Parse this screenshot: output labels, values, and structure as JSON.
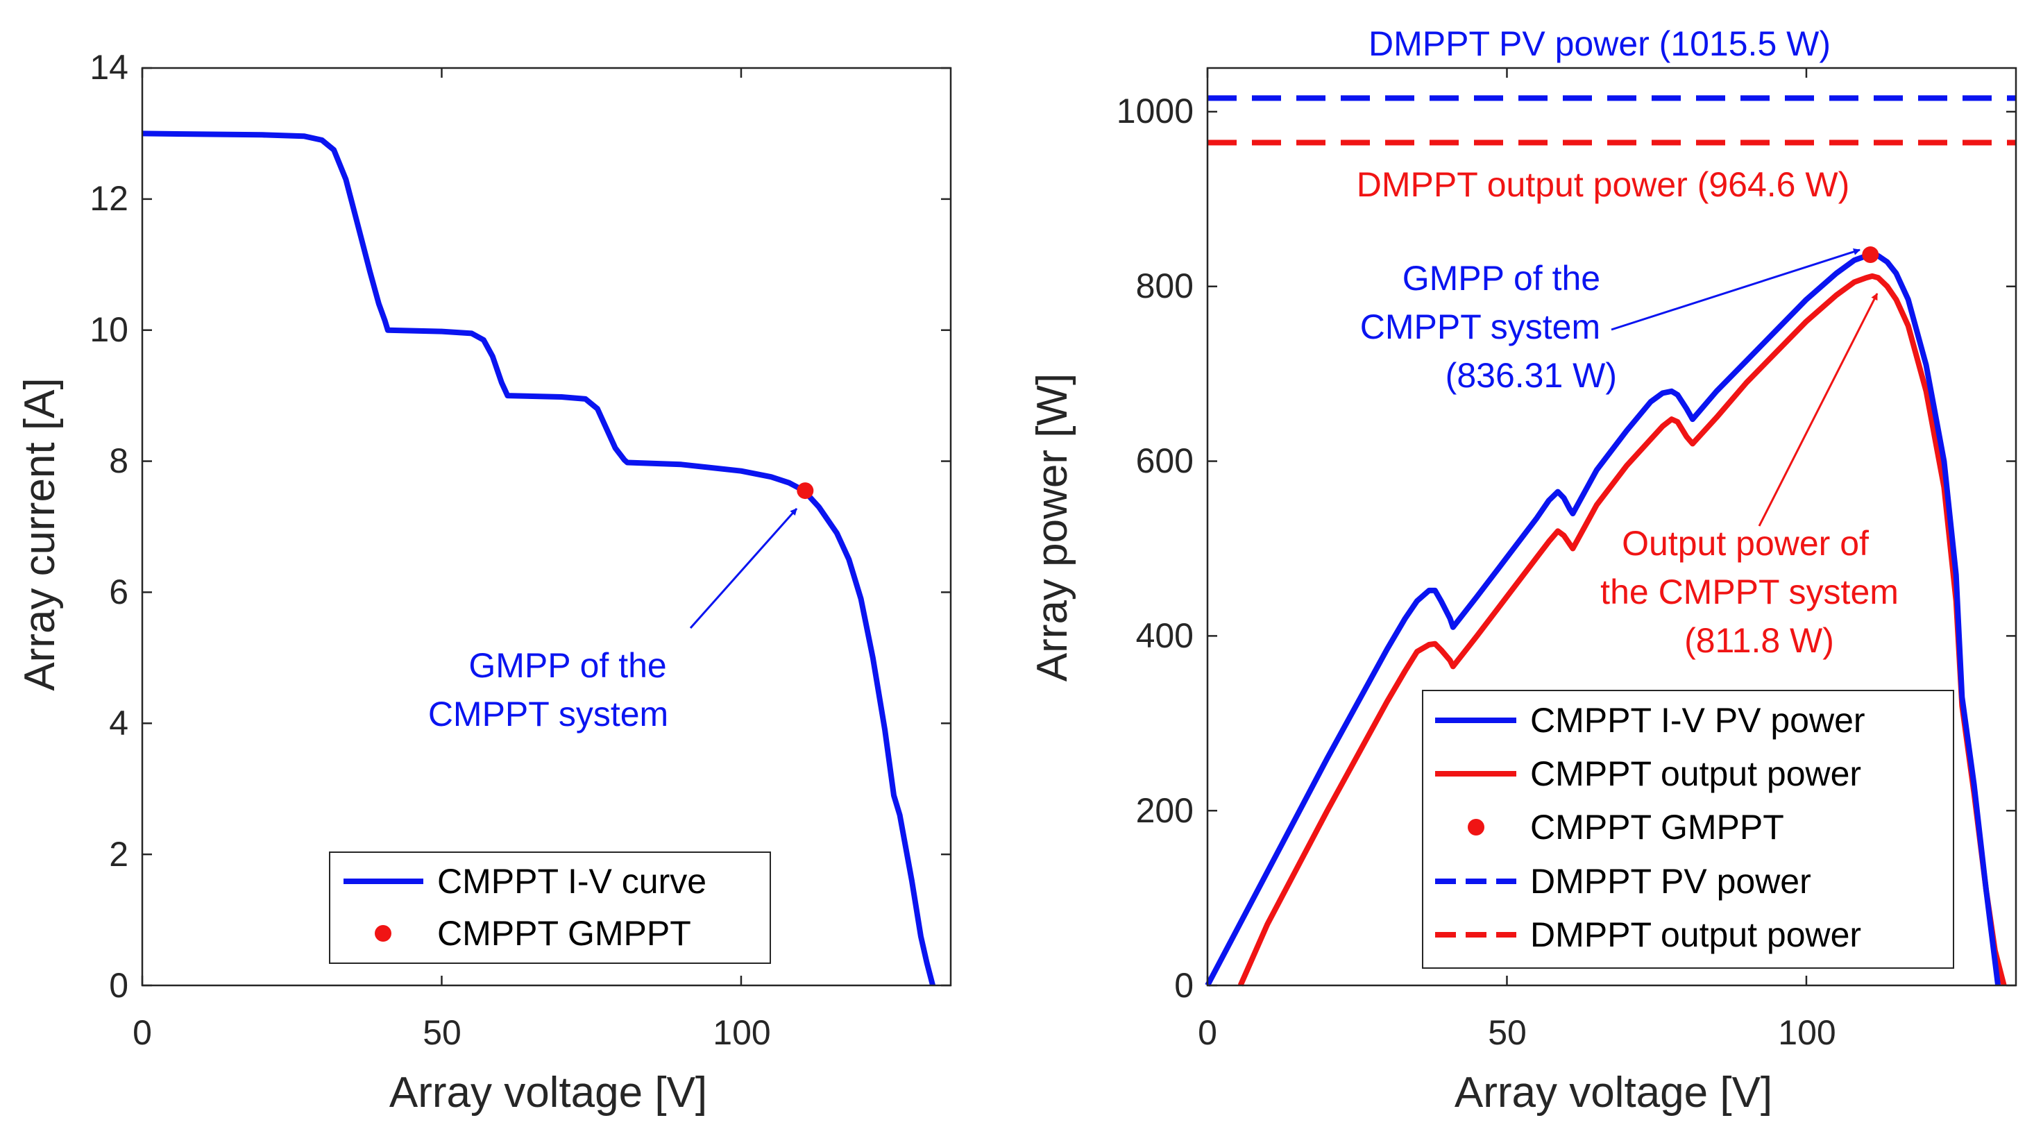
{
  "colors": {
    "blue": "#0a14f0",
    "red": "#f01414",
    "axis": "#262626"
  },
  "chart_data": [
    {
      "type": "line",
      "xlabel": "Array voltage [V]",
      "ylabel": "Array current [A]",
      "xlim": [
        0,
        135
      ],
      "ylim": [
        0,
        14
      ],
      "xticks": [
        "0",
        "50",
        "100"
      ],
      "yticks": [
        "0",
        "2",
        "4",
        "6",
        "8",
        "10",
        "12",
        "14"
      ],
      "series": [
        {
          "name": "CMPPT I-V curve",
          "x": [
            0,
            10,
            20,
            27,
            30,
            32,
            34,
            36,
            38,
            39.5,
            40.5,
            41,
            50,
            55,
            57,
            58.5,
            60,
            61,
            70,
            74,
            76,
            77.5,
            79,
            80.5,
            81,
            90,
            100,
            105,
            108,
            110.5,
            113,
            116,
            118,
            120,
            122,
            124,
            125.5,
            126.5,
            128.5,
            130,
            131,
            132
          ],
          "y": [
            13.0,
            12.99,
            12.98,
            12.96,
            12.9,
            12.75,
            12.3,
            11.6,
            10.9,
            10.4,
            10.15,
            10.0,
            9.98,
            9.95,
            9.85,
            9.6,
            9.2,
            9.0,
            8.98,
            8.95,
            8.8,
            8.5,
            8.2,
            8.02,
            7.98,
            7.95,
            7.85,
            7.76,
            7.67,
            7.55,
            7.3,
            6.9,
            6.5,
            5.9,
            5.0,
            3.9,
            2.9,
            2.6,
            1.6,
            0.75,
            0.35,
            0.0
          ]
        }
      ],
      "points": [
        {
          "name": "CMPPT GMPPT",
          "x": 110.7,
          "y": 7.55
        }
      ],
      "annotations": [
        {
          "lines": [
            "GMPP of the",
            "CMPPT system"
          ]
        }
      ],
      "legend": [
        "CMPPT I-V curve",
        "CMPPT GMPPT"
      ],
      "legend_location": "bottom-right"
    },
    {
      "type": "line",
      "xlabel": "Array voltage [V]",
      "ylabel": "Array power [W]",
      "xlim": [
        0,
        135
      ],
      "ylim": [
        0,
        1050
      ],
      "xticks": [
        "0",
        "50",
        "100"
      ],
      "yticks": [
        "0",
        "200",
        "400",
        "600",
        "800",
        "1000"
      ],
      "series": [
        {
          "name": "CMPPT I-V PV power",
          "x": [
            0,
            10,
            20,
            30,
            33,
            35,
            37,
            38,
            39,
            40.5,
            41,
            45,
            50,
            55,
            57,
            58.5,
            59.5,
            60.5,
            61,
            65,
            70,
            74,
            76,
            77.5,
            78.5,
            80,
            81,
            85,
            90,
            95,
            100,
            105,
            108,
            110,
            111,
            112,
            113.5,
            115,
            117,
            120,
            123,
            125,
            126,
            128,
            130,
            131,
            132
          ],
          "y": [
            0,
            130,
            260,
            385,
            420,
            440,
            452,
            452,
            440,
            420,
            410,
            445,
            490,
            535,
            555,
            565,
            558,
            545,
            540,
            590,
            635,
            668,
            678,
            680,
            676,
            660,
            648,
            680,
            715,
            750,
            785,
            815,
            830,
            835,
            836.3,
            835,
            828,
            815,
            785,
            710,
            600,
            470,
            330,
            230,
            110,
            55,
            0
          ]
        },
        {
          "name": "CMPPT output power",
          "x": [
            5.5,
            10,
            20,
            30,
            33,
            35,
            37,
            38,
            39,
            40.5,
            41,
            45,
            50,
            55,
            57,
            58.5,
            59.5,
            60.5,
            61,
            65,
            70,
            74,
            76,
            77.5,
            78.5,
            80,
            81,
            85,
            90,
            95,
            100,
            105,
            108,
            110,
            111,
            112,
            113.5,
            115,
            117,
            120,
            123,
            125,
            126,
            128,
            130,
            131.5,
            133
          ],
          "y": [
            0,
            70,
            200,
            325,
            360,
            382,
            390,
            391,
            384,
            372,
            365,
            400,
            445,
            490,
            508,
            520,
            515,
            505,
            500,
            550,
            595,
            625,
            640,
            648,
            645,
            628,
            620,
            650,
            690,
            725,
            760,
            790,
            805,
            810,
            811.8,
            810,
            800,
            785,
            755,
            680,
            570,
            440,
            320,
            220,
            110,
            40,
            0
          ]
        }
      ],
      "points": [
        {
          "name": "CMPPT GMPPT",
          "x": 110.7,
          "y": 836.3
        }
      ],
      "dmppt_pv_power": 1015.5,
      "dmppt_output_power": 964.6,
      "annotations": [
        {
          "lines": [
            "DMPPT PV power (1015.5 W)"
          ],
          "color": "blue"
        },
        {
          "lines": [
            "DMPPT output power (964.6 W)"
          ],
          "color": "red"
        },
        {
          "lines": [
            "GMPP of the",
            "CMPPT system",
            "(836.31 W)"
          ],
          "color": "blue"
        },
        {
          "lines": [
            "Output power of",
            "the CMPPT system",
            "(811.8 W)"
          ],
          "color": "red"
        }
      ],
      "legend": [
        "CMPPT I-V PV power",
        "CMPPT output power",
        "CMPPT GMPPT",
        "DMPPT PV power",
        "DMPPT output power"
      ],
      "legend_location": "bottom-right"
    }
  ]
}
